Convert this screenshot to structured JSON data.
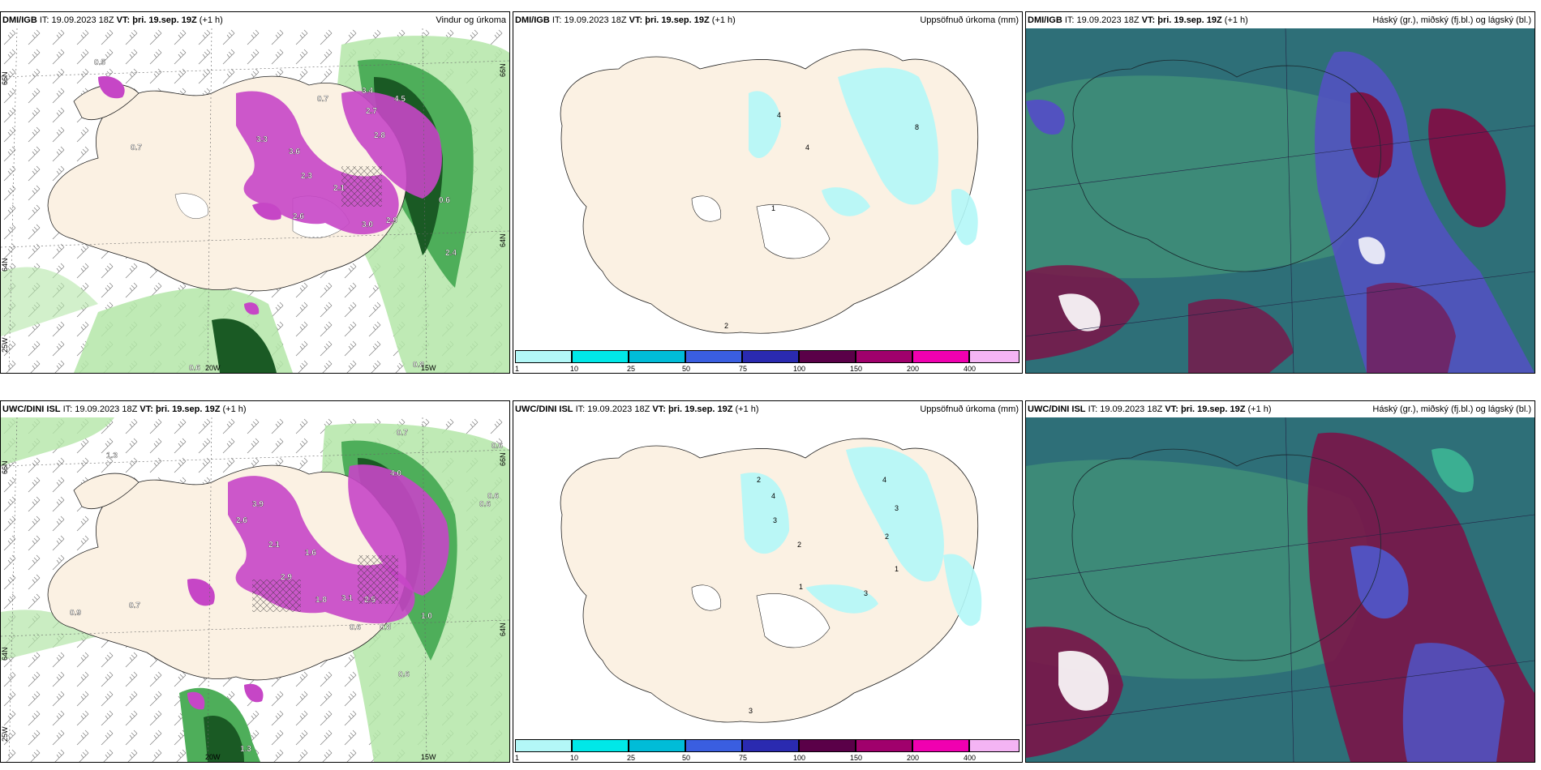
{
  "panels": [
    {
      "id": "top-left",
      "model": "DMI/IGB",
      "it_prefix": "IT:",
      "it": "19.09.2023 18Z",
      "vt_prefix": "VT:",
      "vt": "þri. 19.sep. 19Z",
      "lead": "(+1 h)",
      "title": "Vindur og úrkoma",
      "lat_labels": [
        "66N",
        "64N",
        "66N",
        "64N"
      ],
      "lon_labels": [
        "25W",
        "20W",
        "15W"
      ],
      "values": [
        "0.5",
        "0.7",
        "3.4",
        "4.5",
        "0.7",
        "2.7",
        "2.8",
        "3.3",
        "3.6",
        "2.3",
        "2.1",
        "2.6",
        "3.0",
        "2.9",
        "0.6",
        "2.4",
        "0.6",
        "0.8"
      ]
    },
    {
      "id": "top-mid",
      "model": "DMI/IGB",
      "it_prefix": "IT:",
      "it": "19.09.2023 18Z",
      "vt_prefix": "VT:",
      "vt": "þri. 19.sep. 19Z",
      "lead": "(+1 h)",
      "title": "Uppsöfnuð úrkoma (mm)",
      "values": [
        "4",
        "4",
        "8",
        "1",
        "2"
      ]
    },
    {
      "id": "top-right",
      "model": "DMI/IGB",
      "it_prefix": "IT:",
      "it": "19.09.2023 18Z",
      "vt_prefix": "VT:",
      "vt": "þri. 19.sep. 19Z",
      "lead": "(+1 h)",
      "title": "Háský (gr.), miðský (fj.bl.) og lágský (bl.)"
    },
    {
      "id": "bot-left",
      "model": "UWC/DINI ISL",
      "it_prefix": "IT:",
      "it": "19.09.2023 18Z",
      "vt_prefix": "VT:",
      "vt": "þri. 19.sep. 19Z",
      "lead": "(+1 h)",
      "title": "",
      "lat_labels": [
        "66N",
        "64N",
        "66N",
        "64N"
      ],
      "lon_labels": [
        "25W",
        "20W",
        "15W"
      ],
      "values": [
        "1.3",
        "0.7",
        "0.6",
        "0.6",
        "4.0",
        "2.6",
        "3.9",
        "2.1",
        "1.6",
        "2.9",
        "1.8",
        "3.1",
        "2.5",
        "0.6",
        "0.8",
        "0.9",
        "0.7",
        "0.6",
        "0.6",
        "1.0",
        "1.3"
      ]
    },
    {
      "id": "bot-mid",
      "model": "UWC/DINI ISL",
      "it_prefix": "IT:",
      "it": "19.09.2023 18Z",
      "vt_prefix": "VT:",
      "vt": "þri. 19.sep. 19Z",
      "lead": "(+1 h)",
      "title": "Uppsöfnuð úrkoma (mm)",
      "values": [
        "2",
        "4",
        "3",
        "2",
        "1",
        "4",
        "3",
        "2",
        "1",
        "3",
        "3"
      ]
    },
    {
      "id": "bot-right",
      "model": "UWC/DINI ISL",
      "it_prefix": "IT:",
      "it": "19.09.2023 18Z",
      "vt_prefix": "VT:",
      "vt": "þri. 19.sep. 19Z",
      "lead": "(+1 h)",
      "title": "Háský (gr.), miðský (fj.bl.) og lágský (bl.)"
    }
  ],
  "colorbar": {
    "ticks": [
      "1",
      "10",
      "25",
      "50",
      "75",
      "100",
      "150",
      "200",
      "400"
    ],
    "colors": [
      "#b3f7f7",
      "#00e8e8",
      "#00bcd8",
      "#3a5ee0",
      "#2a2ab0",
      "#5a0048",
      "#a0006c",
      "#f000b0",
      "#f4b4f4"
    ]
  },
  "colors": {
    "land": "#fbf1e3",
    "sea_left": "#ffffff",
    "green_light": "#b4e6a8",
    "green_mid": "#4eae5a",
    "green_dark": "#1a5a24",
    "magenta": "#c646c6",
    "cloud_base": "#2e6f78",
    "cloud_mid": "#3f8f78",
    "cloud_high": "#7a1448",
    "cloud_purple": "#5252c0"
  }
}
